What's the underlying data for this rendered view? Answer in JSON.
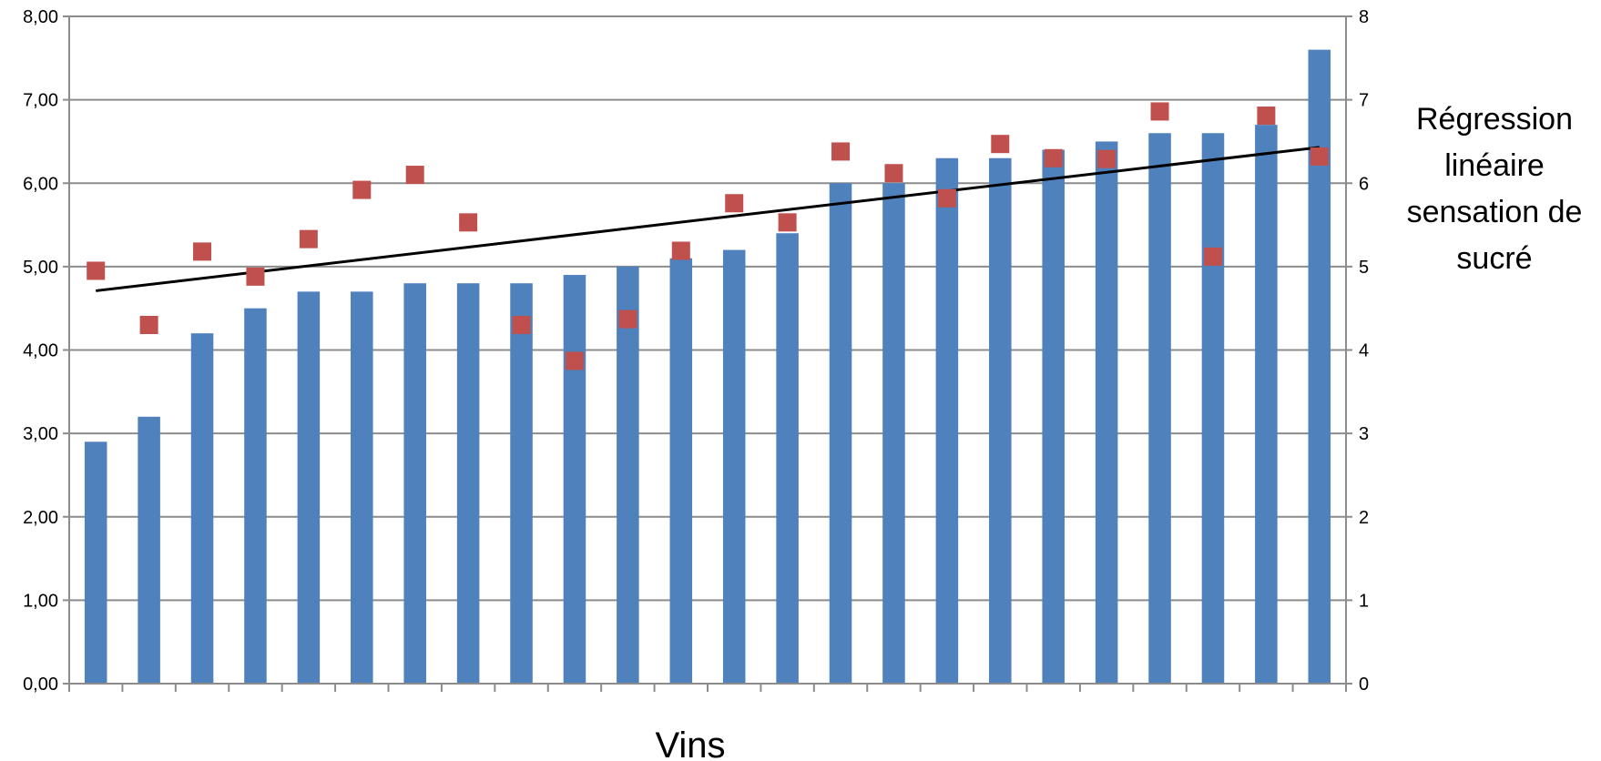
{
  "chart_data": {
    "type": "bar",
    "xlabel": "Vins",
    "ylabel_left": "",
    "ylabel_right_lines": [
      "Régression",
      "linéaire",
      "sensation de",
      "sucré"
    ],
    "ylim_left": [
      0,
      8
    ],
    "ylim_right": [
      0,
      8
    ],
    "left_ticks": [
      "0,00",
      "1,00",
      "2,00",
      "3,00",
      "4,00",
      "5,00",
      "6,00",
      "7,00",
      "8,00"
    ],
    "right_ticks": [
      "0",
      "1",
      "2",
      "3",
      "4",
      "5",
      "6",
      "7",
      "8"
    ],
    "grid": "horizontal",
    "series": [
      {
        "kind": "bar",
        "axis": "left",
        "color": "#4f81bd",
        "values": [
          2.9,
          3.2,
          4.2,
          4.5,
          4.7,
          4.7,
          4.8,
          4.8,
          4.8,
          4.9,
          5.0,
          5.1,
          5.2,
          5.4,
          6.0,
          6.0,
          6.3,
          6.3,
          6.4,
          6.5,
          6.6,
          6.6,
          6.7,
          7.6
        ]
      },
      {
        "kind": "scatter",
        "axis": "right",
        "color": "#c0504d",
        "marker": "square",
        "values": [
          4.95,
          4.3,
          5.18,
          4.88,
          5.33,
          5.92,
          6.1,
          5.53,
          4.3,
          3.87,
          4.37,
          5.19,
          5.76,
          5.53,
          6.38,
          6.12,
          5.82,
          6.47,
          6.3,
          6.29,
          6.86,
          5.12,
          6.81,
          6.32
        ]
      },
      {
        "kind": "trendline",
        "axis": "right",
        "color": "#000000",
        "start": 4.71,
        "end": 6.43
      }
    ]
  }
}
